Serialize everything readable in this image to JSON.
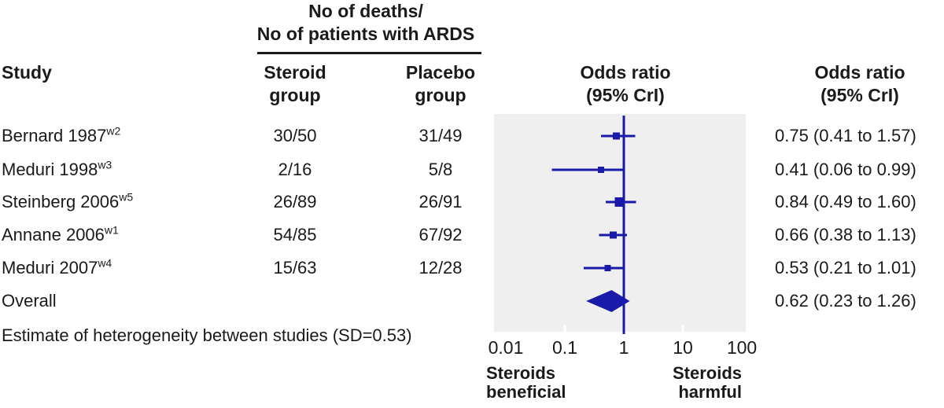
{
  "figure": {
    "text_color": "#1a1a1a",
    "accent_blue": "#1a1aaa",
    "plot_bg": "#f0eff0",
    "tick_notch_color": "#ffffff"
  },
  "headers": {
    "study": "Study",
    "counts_line1": "No of deaths/",
    "counts_line2": "No of patients with ARDS",
    "steroid_line1": "Steroid",
    "steroid_line2": "group",
    "placebo_line1": "Placebo",
    "placebo_line2": "group",
    "or_plot_line1": "Odds ratio",
    "or_plot_line2": "(95% CrI)",
    "or_text_line1": "Odds ratio",
    "or_text_line2": "(95% CrI)"
  },
  "footer": {
    "heterogeneity_note": "Estimate of heterogeneity between studies (SD=0.53)",
    "left_label_line1": "Steroids",
    "left_label_line2": "beneficial",
    "right_label_line1": "Steroids",
    "right_label_line2": "harmful"
  },
  "chart_data": {
    "type": "forest",
    "x_scale": "log",
    "x_ticks": [
      0.01,
      0.1,
      1,
      10,
      100
    ],
    "x_tick_labels": [
      "0.01",
      "0.1",
      "1",
      "10",
      "100"
    ],
    "inner_notch_values": [
      0.1,
      10
    ],
    "reference_line": 1,
    "studies": [
      {
        "name": "Bernard 1987",
        "ref": "w2",
        "steroid": "30/50",
        "placebo": "31/49",
        "or": 0.75,
        "ci_low": 0.41,
        "ci_high": 1.57,
        "or_text": "0.75 (0.41 to 1.57)",
        "marker_size": 9
      },
      {
        "name": "Meduri 1998",
        "ref": "w3",
        "steroid": "2/16",
        "placebo": "5/8",
        "or": 0.41,
        "ci_low": 0.06,
        "ci_high": 0.99,
        "or_text": "0.41 (0.06 to 0.99)",
        "marker_size": 8
      },
      {
        "name": "Steinberg 2006",
        "ref": "w5",
        "steroid": "26/89",
        "placebo": "26/91",
        "or": 0.84,
        "ci_low": 0.49,
        "ci_high": 1.6,
        "or_text": "0.84 (0.49 to 1.60)",
        "marker_size": 12
      },
      {
        "name": "Annane 2006",
        "ref": "w1",
        "steroid": "54/85",
        "placebo": "67/92",
        "or": 0.66,
        "ci_low": 0.38,
        "ci_high": 1.13,
        "or_text": "0.66 (0.38 to 1.13)",
        "marker_size": 9
      },
      {
        "name": "Meduri 2007",
        "ref": "w4",
        "steroid": "15/63",
        "placebo": "12/28",
        "or": 0.53,
        "ci_low": 0.21,
        "ci_high": 1.01,
        "or_text": "0.53 (0.21 to 1.01)",
        "marker_size": 8
      }
    ],
    "overall": {
      "name": "Overall",
      "or": 0.62,
      "ci_low": 0.23,
      "ci_high": 1.26,
      "or_text": "0.62 (0.23 to 1.26)"
    }
  }
}
